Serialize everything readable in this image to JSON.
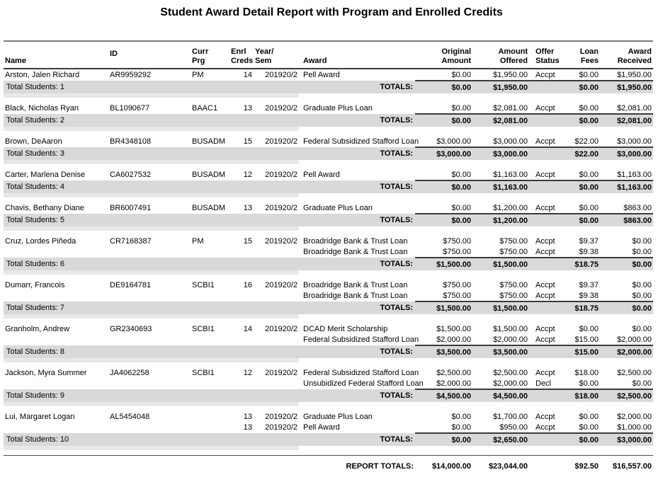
{
  "title": "Student Award Detail Report with Program and Enrolled Credits",
  "columns": {
    "name": "Name",
    "id": "ID",
    "curr_prg": [
      "Curr",
      "Prg"
    ],
    "enrl_creds": [
      "Enrl",
      "Creds"
    ],
    "year_sem": [
      "Year/",
      "Sem"
    ],
    "award": "Award",
    "original_amount": [
      "Original",
      "Amount"
    ],
    "amount_offered": [
      "Amount",
      "Offered"
    ],
    "offer_status": [
      "Offer",
      "Status"
    ],
    "loan_fees": [
      "Loan",
      "Fees"
    ],
    "award_received": [
      "Award",
      "Received"
    ]
  },
  "totals_label": "TOTALS:",
  "report_totals_label": "REPORT TOTALS:",
  "report_totals": {
    "original_amount": "$14,000.00",
    "amount_offered": "$23,044.00",
    "loan_fees": "$92.50",
    "award_received": "$16,557.00"
  },
  "colors": {
    "totals_bar": "#d9d9d9",
    "separator_strip": "#e8e8e8",
    "text": "#000000"
  },
  "groups": [
    {
      "name": "Arston, Jalen Richard",
      "id": "AR9959292",
      "curr_prg": "PM",
      "awards": [
        {
          "enrl_creds": "14",
          "year_sem": "201920/2",
          "award": "Pell Award",
          "original_amount": "$0.00",
          "amount_offered": "$1,950.00",
          "offer_status": "Accpt",
          "loan_fees": "$0.00",
          "award_received": "$1,950.00"
        }
      ],
      "totals": {
        "original_amount": "$0.00",
        "amount_offered": "$1,950.00",
        "loan_fees": "$0.00",
        "award_received": "$1,950.00"
      },
      "total_students": "Total Students: 1"
    },
    {
      "name": "Black, Nicholas Ryan",
      "id": "BL1090677",
      "curr_prg": "BAAC1",
      "awards": [
        {
          "enrl_creds": "13",
          "year_sem": "201920/2",
          "award": "Graduate Plus Loan",
          "original_amount": "$0.00",
          "amount_offered": "$2,081.00",
          "offer_status": "Accpt",
          "loan_fees": "$0.00",
          "award_received": "$2,081.00"
        }
      ],
      "totals": {
        "original_amount": "$0.00",
        "amount_offered": "$2,081.00",
        "loan_fees": "$0.00",
        "award_received": "$2,081.00"
      },
      "total_students": "Total Students: 2"
    },
    {
      "name": "Brown, DeAaron",
      "id": "BR4348108",
      "curr_prg": "BUSADM",
      "awards": [
        {
          "enrl_creds": "15",
          "year_sem": "201920/2",
          "award": "Federal Subsidized Stafford Loan",
          "original_amount": "$3,000.00",
          "amount_offered": "$3,000.00",
          "offer_status": "Accpt",
          "loan_fees": "$22.00",
          "award_received": "$3,000.00"
        }
      ],
      "totals": {
        "original_amount": "$3,000.00",
        "amount_offered": "$3,000.00",
        "loan_fees": "$22.00",
        "award_received": "$3,000.00"
      },
      "total_students": "Total Students: 3"
    },
    {
      "name": "Carter, Marlena Denise",
      "id": "CA6027532",
      "curr_prg": "BUSADM",
      "awards": [
        {
          "enrl_creds": "12",
          "year_sem": "201920/2",
          "award": "Pell Award",
          "original_amount": "$0.00",
          "amount_offered": "$1,163.00",
          "offer_status": "Accpt",
          "loan_fees": "$0.00",
          "award_received": "$1,163.00"
        }
      ],
      "totals": {
        "original_amount": "$0.00",
        "amount_offered": "$1,163.00",
        "loan_fees": "$0.00",
        "award_received": "$1,163.00"
      },
      "total_students": "Total Students: 4"
    },
    {
      "name": "Chavis, Bethany Diane",
      "id": "BR6007491",
      "curr_prg": "BUSADM",
      "awards": [
        {
          "enrl_creds": "13",
          "year_sem": "201920/2",
          "award": "Graduate Plus Loan",
          "original_amount": "$0.00",
          "amount_offered": "$1,200.00",
          "offer_status": "Accpt",
          "loan_fees": "$0.00",
          "award_received": "$863.00"
        }
      ],
      "totals": {
        "original_amount": "$0.00",
        "amount_offered": "$1,200.00",
        "loan_fees": "$0.00",
        "award_received": "$863.00"
      },
      "total_students": "Total Students: 5"
    },
    {
      "name": "Cruz, Lordes Piñeda",
      "id": "CR7168387",
      "curr_prg": "PM",
      "awards": [
        {
          "enrl_creds": "15",
          "year_sem": "201920/2",
          "award": "Broadridge Bank & Trust Loan",
          "original_amount": "$750.00",
          "amount_offered": "$750.00",
          "offer_status": "Accpt",
          "loan_fees": "$9.37",
          "award_received": "$0.00"
        },
        {
          "enrl_creds": "",
          "year_sem": "",
          "award": "Broadridge Bank & Trust Loan",
          "original_amount": "$750.00",
          "amount_offered": "$750.00",
          "offer_status": "Accpt",
          "loan_fees": "$9.38",
          "award_received": "$0.00"
        }
      ],
      "totals": {
        "original_amount": "$1,500.00",
        "amount_offered": "$1,500.00",
        "loan_fees": "$18.75",
        "award_received": "$0.00"
      },
      "total_students": "Total Students: 6"
    },
    {
      "name": "Dumarr, Francois",
      "id": "DE9164781",
      "curr_prg": "SCBI1",
      "awards": [
        {
          "enrl_creds": "16",
          "year_sem": "201920/2",
          "award": "Broadridge Bank & Trust Loan",
          "original_amount": "$750.00",
          "amount_offered": "$750.00",
          "offer_status": "Accpt",
          "loan_fees": "$9.37",
          "award_received": "$0.00"
        },
        {
          "enrl_creds": "",
          "year_sem": "",
          "award": "Broadridge Bank & Trust Loan",
          "original_amount": "$750.00",
          "amount_offered": "$750.00",
          "offer_status": "Accpt",
          "loan_fees": "$9.38",
          "award_received": "$0.00"
        }
      ],
      "totals": {
        "original_amount": "$1,500.00",
        "amount_offered": "$1,500.00",
        "loan_fees": "$18.75",
        "award_received": "$0.00"
      },
      "total_students": "Total Students: 7"
    },
    {
      "name": "Granholm, Andrew",
      "id": "GR2340693",
      "curr_prg": "SCBI1",
      "awards": [
        {
          "enrl_creds": "14",
          "year_sem": "201920/2",
          "award": "DCAD Merit Scholarship",
          "original_amount": "$1,500.00",
          "amount_offered": "$1,500.00",
          "offer_status": "Accpt",
          "loan_fees": "$0.00",
          "award_received": "$0.00"
        },
        {
          "enrl_creds": "",
          "year_sem": "",
          "award": "Federal Subsidized Stafford Loan",
          "original_amount": "$2,000.00",
          "amount_offered": "$2,000.00",
          "offer_status": "Accpt",
          "loan_fees": "$15.00",
          "award_received": "$2,000.00"
        }
      ],
      "totals": {
        "original_amount": "$3,500.00",
        "amount_offered": "$3,500.00",
        "loan_fees": "$15.00",
        "award_received": "$2,000.00"
      },
      "total_students": "Total Students: 8"
    },
    {
      "name": "Jackson, Myra Summer",
      "id": "JA4062258",
      "curr_prg": "SCBI1",
      "awards": [
        {
          "enrl_creds": "12",
          "year_sem": "201920/2",
          "award": "Federal Subsidized Stafford Loan",
          "original_amount": "$2,500.00",
          "amount_offered": "$2,500.00",
          "offer_status": "Accpt",
          "loan_fees": "$18.00",
          "award_received": "$2,500.00"
        },
        {
          "enrl_creds": "",
          "year_sem": "",
          "award": "Unsubidized Federal Stafford Loan",
          "original_amount": "$2,000.00",
          "amount_offered": "$2,000.00",
          "offer_status": "Decl",
          "loan_fees": "$0.00",
          "award_received": "$0.00"
        }
      ],
      "totals": {
        "original_amount": "$4,500.00",
        "amount_offered": "$4,500.00",
        "loan_fees": "$18.00",
        "award_received": "$2,500.00"
      },
      "total_students": "Total Students: 9"
    },
    {
      "name": "Lui, Margaret Logan",
      "id": "AL5454048",
      "curr_prg": "",
      "awards": [
        {
          "enrl_creds": "13",
          "year_sem": "201920/2",
          "award": "Graduate Plus Loan",
          "original_amount": "$0.00",
          "amount_offered": "$1,700.00",
          "offer_status": "Accpt",
          "loan_fees": "$0.00",
          "award_received": "$2,000.00"
        },
        {
          "enrl_creds": "13",
          "year_sem": "201920/2",
          "award": "Pell Award",
          "original_amount": "$0.00",
          "amount_offered": "$950.00",
          "offer_status": "Accpt",
          "loan_fees": "$0.00",
          "award_received": "$1,000.00"
        }
      ],
      "totals": {
        "original_amount": "$0.00",
        "amount_offered": "$2,650.00",
        "loan_fees": "$0.00",
        "award_received": "$3,000.00"
      },
      "total_students": "Total Students: 10"
    }
  ]
}
